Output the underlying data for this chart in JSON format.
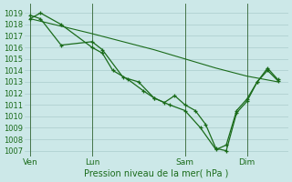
{
  "bg_color": "#cce8e8",
  "grid_color": "#aacccc",
  "line_color": "#1a6b1a",
  "xlabel": "Pression niveau de la mer( hPa )",
  "ylim": [
    1006.5,
    1019.8
  ],
  "yticks": [
    1007,
    1008,
    1009,
    1010,
    1011,
    1012,
    1013,
    1014,
    1015,
    1016,
    1017,
    1018,
    1019
  ],
  "xtick_labels": [
    "Ven",
    "Lun",
    "Sam",
    "Dim"
  ],
  "xtick_pos": [
    0,
    24,
    60,
    84
  ],
  "xlim": [
    -2,
    100
  ],
  "series_straight": {
    "x": [
      0,
      24,
      48,
      60,
      72,
      84,
      96
    ],
    "y": [
      1018.5,
      1017.2,
      1015.8,
      1015.0,
      1014.2,
      1013.5,
      1013.0
    ]
  },
  "series_a": {
    "x": [
      0,
      4,
      12,
      24,
      28,
      36,
      42,
      48,
      54,
      60,
      66,
      72,
      76,
      80,
      84,
      88,
      92,
      96
    ],
    "y": [
      1018.8,
      1018.5,
      1016.2,
      1016.5,
      1015.8,
      1013.4,
      1013.0,
      1011.6,
      1011.0,
      1010.5,
      1009.0,
      1007.1,
      1007.5,
      1010.5,
      1011.5,
      1013.0,
      1014.0,
      1013.1
    ]
  },
  "series_b": {
    "x": [
      0,
      4,
      12,
      24,
      28,
      32,
      38,
      44,
      48,
      52,
      56,
      60,
      64,
      68,
      72,
      76,
      80,
      84,
      88,
      92,
      96
    ],
    "y": [
      1018.5,
      1019.0,
      1018.0,
      1016.0,
      1015.5,
      1014.0,
      1013.2,
      1012.2,
      1011.6,
      1011.2,
      1011.8,
      1011.0,
      1010.5,
      1009.3,
      1007.2,
      1007.0,
      1010.3,
      1011.3,
      1013.0,
      1014.2,
      1013.2
    ]
  }
}
